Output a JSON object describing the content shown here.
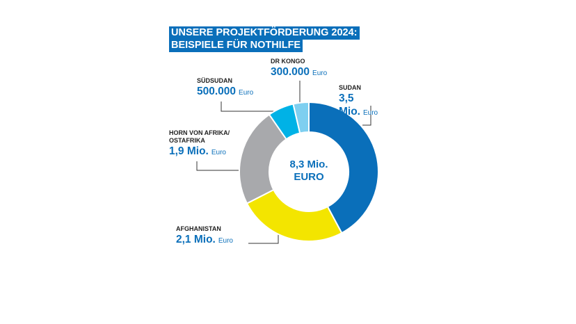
{
  "chart_data": {
    "type": "donut",
    "title": [
      "UNSERE PROJEKTFÖRDERUNG 2024:",
      "BEISPIELE FÜR NOTHILFE"
    ],
    "center_label": [
      "8,3 Mio.",
      "EURO"
    ],
    "unit": "Euro",
    "categories": [
      "SUDAN",
      "AFGHANISTAN",
      "HORN VON AFRIKA/ OSTAFRIKA",
      "SÜDSUDAN",
      "DR KONGO"
    ],
    "values": [
      3500000,
      2100000,
      1900000,
      500000,
      300000
    ],
    "value_labels": [
      "3,5 Mio.",
      "2,1 Mio.",
      "1,9 Mio.",
      "500.000",
      "300.000"
    ],
    "colors": [
      "#0a6fba",
      "#f3e500",
      "#a8a9ac",
      "#00b2e6",
      "#7ecff0"
    ]
  }
}
